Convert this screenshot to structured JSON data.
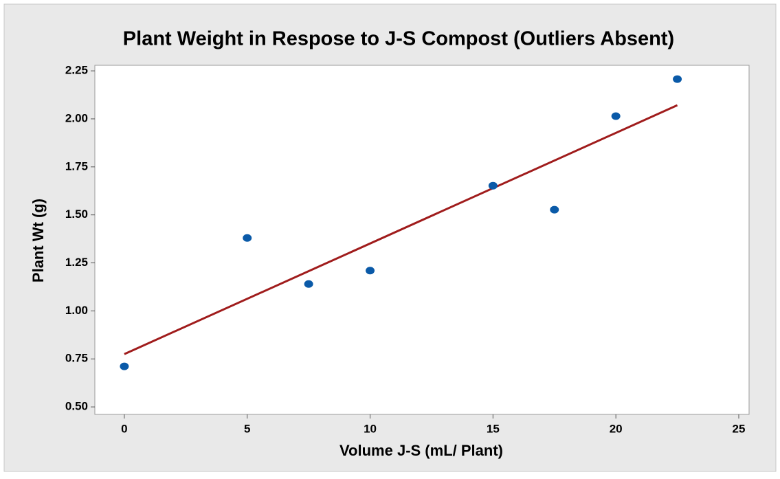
{
  "chart_data": {
    "type": "scatter",
    "title": "Plant Weight in Respose to J-S Compost (Outliers Absent)",
    "x_label": "Volume J-S (mL/ Plant)",
    "y_label": "Plant Wt (g)",
    "series": [
      {
        "x": [
          0,
          5,
          7.5,
          10,
          15,
          17.5,
          20,
          22.5
        ],
        "values": [
          0.711,
          1.38,
          1.14,
          1.21,
          1.652,
          1.527,
          2.014,
          2.207
        ],
        "color": "#0a5aa8"
      }
    ],
    "fit_line": {
      "x": [
        0,
        22.5
      ],
      "values": [
        0.775,
        2.071
      ],
      "color": "#a01c1c"
    },
    "xlim": [
      -1.2,
      25.42
    ],
    "ylim": [
      0.461,
      2.279
    ],
    "xticks": [
      0,
      5,
      10,
      15,
      20,
      25
    ],
    "yticks": [
      {
        "value": 0.5,
        "label": "0.50"
      },
      {
        "value": 0.75,
        "label": "0.75"
      },
      {
        "value": 1.0,
        "label": "1.00"
      },
      {
        "value": 1.25,
        "label": "1.25"
      },
      {
        "value": 1.5,
        "label": "1.50"
      },
      {
        "value": 1.75,
        "label": "1.75"
      },
      {
        "value": 2.0,
        "label": "2.00"
      },
      {
        "value": 2.25,
        "label": "2.25"
      }
    ]
  }
}
